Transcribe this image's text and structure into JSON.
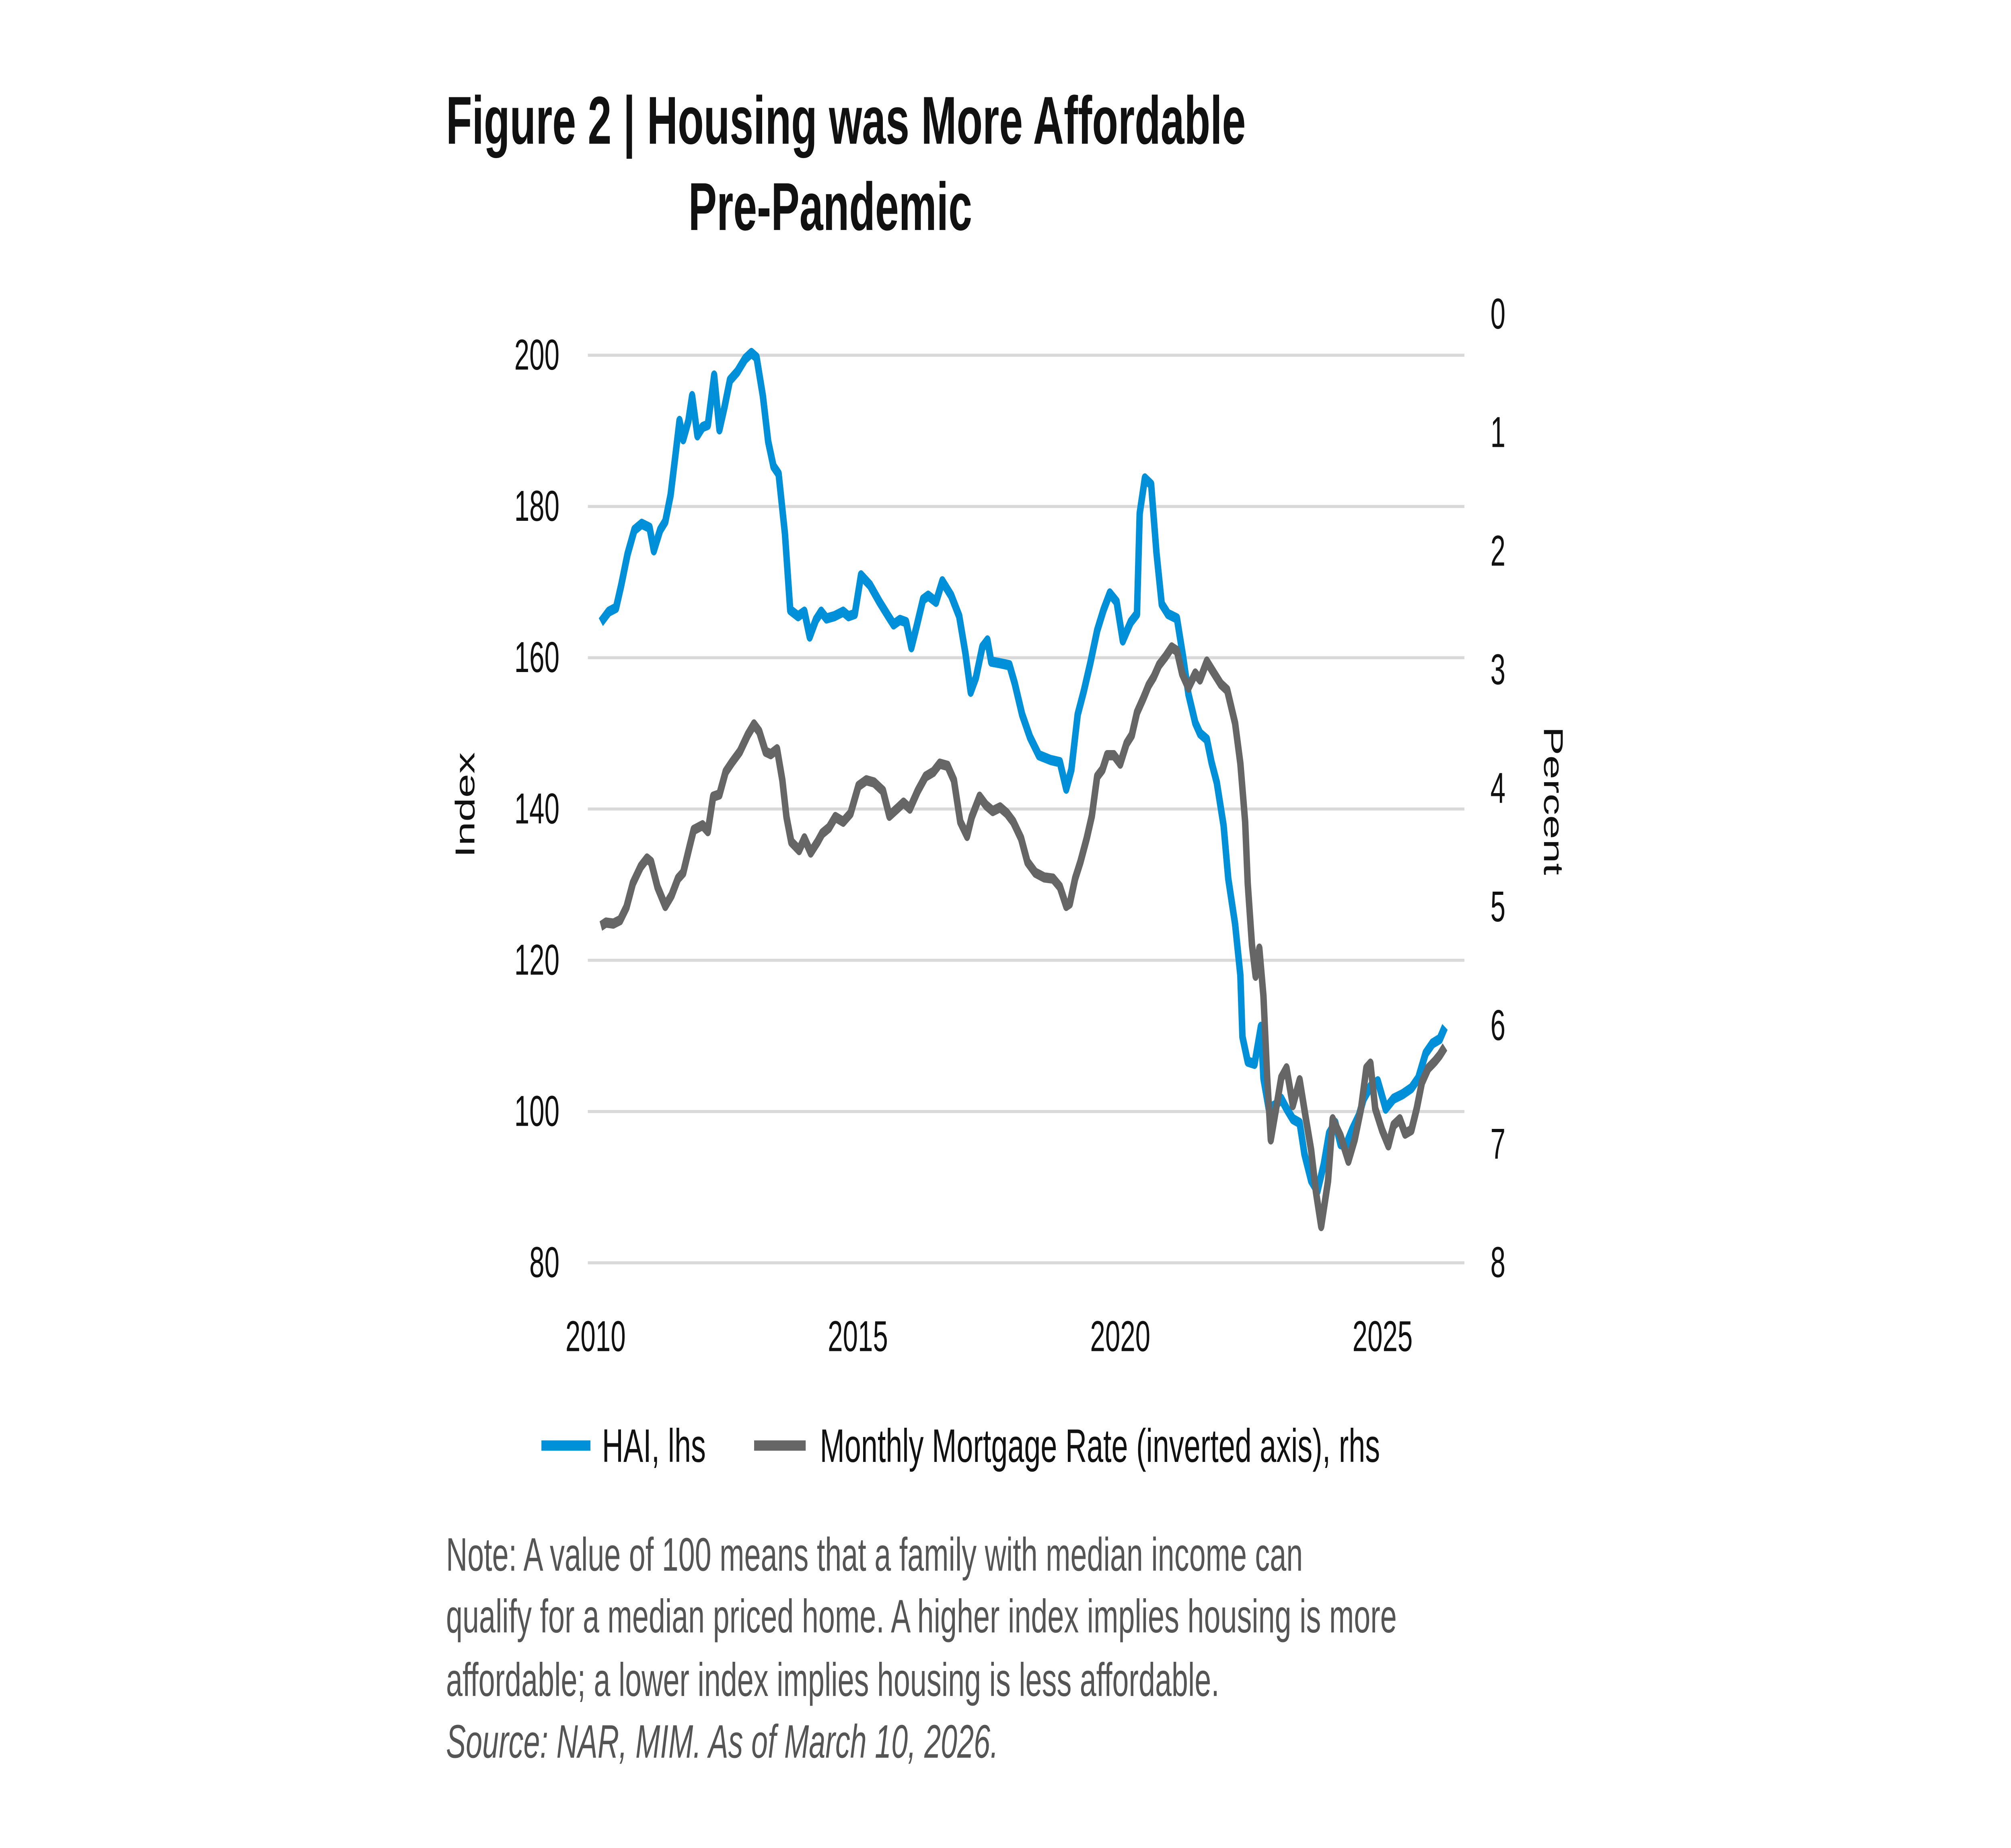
{
  "title": {
    "line1": "Figure 2  |  Housing was More Affordable",
    "line2": "Pre-Pandemic"
  },
  "note": {
    "lines": [
      "Note: A value of 100 means that a family with median income can",
      "qualify for a median priced home. A higher index implies housing is more",
      "affordable; a lower index implies housing is less affordable."
    ],
    "source": "Source: NAR, MIM. As of March 10, 2026."
  },
  "colors": {
    "hai": "#0090DA",
    "rate": "#666666",
    "grid": "#D9D9D9"
  },
  "chart_data": {
    "type": "line",
    "title": "Figure 2 | Housing was More Affordable Pre-Pandemic",
    "xlabel": "",
    "ylabel": "Index",
    "y2label": "Percent",
    "xlim": [
      2010,
      2026.7
    ],
    "ylim": [
      80,
      200
    ],
    "y2lim": [
      0,
      8
    ],
    "y2_inverted": true,
    "grid": true,
    "legend_position": "bottom",
    "x_ticks": [
      "2010",
      "2015",
      "2020",
      "2025"
    ],
    "y_ticks": [
      "200",
      "180",
      "160",
      "140",
      "120",
      "100",
      "80"
    ],
    "y2_ticks": [
      "0",
      "1",
      "2",
      "3",
      "4",
      "5",
      "6",
      "7",
      "8"
    ],
    "series": [
      {
        "name": "HAI, lhs",
        "axis": "left",
        "points": [
          [
            2010.1,
            164.7
          ],
          [
            2010.25,
            166.1
          ],
          [
            2010.39,
            166.6
          ],
          [
            2010.49,
            169.6
          ],
          [
            2010.61,
            173.7
          ],
          [
            2010.74,
            176.9
          ],
          [
            2010.88,
            177.7
          ],
          [
            2011.03,
            177.2
          ],
          [
            2011.11,
            174.2
          ],
          [
            2011.23,
            176.9
          ],
          [
            2011.33,
            178.0
          ],
          [
            2011.43,
            181.5
          ],
          [
            2011.52,
            186.7
          ],
          [
            2011.6,
            191.3
          ],
          [
            2011.67,
            188.9
          ],
          [
            2011.77,
            191.3
          ],
          [
            2011.84,
            194.6
          ],
          [
            2011.94,
            189.4
          ],
          [
            2012.04,
            190.5
          ],
          [
            2012.14,
            190.8
          ],
          [
            2012.26,
            197.3
          ],
          [
            2012.36,
            190.2
          ],
          [
            2012.46,
            193.2
          ],
          [
            2012.56,
            196.7
          ],
          [
            2012.7,
            197.8
          ],
          [
            2012.85,
            199.5
          ],
          [
            2012.97,
            200.3
          ],
          [
            2013.07,
            199.7
          ],
          [
            2013.19,
            194.6
          ],
          [
            2013.29,
            188.6
          ],
          [
            2013.39,
            185.3
          ],
          [
            2013.49,
            184.3
          ],
          [
            2013.61,
            176.4
          ],
          [
            2013.71,
            166.3
          ],
          [
            2013.86,
            165.5
          ],
          [
            2013.98,
            166.1
          ],
          [
            2014.08,
            162.8
          ],
          [
            2014.2,
            165.0
          ],
          [
            2014.3,
            166.1
          ],
          [
            2014.4,
            165.2
          ],
          [
            2014.55,
            165.5
          ],
          [
            2014.72,
            166.1
          ],
          [
            2014.82,
            165.5
          ],
          [
            2014.94,
            165.8
          ],
          [
            2015.06,
            170.9
          ],
          [
            2015.23,
            169.6
          ],
          [
            2015.41,
            167.4
          ],
          [
            2015.58,
            165.5
          ],
          [
            2015.68,
            164.4
          ],
          [
            2015.8,
            165.0
          ],
          [
            2015.92,
            164.7
          ],
          [
            2016.02,
            161.4
          ],
          [
            2016.12,
            164.2
          ],
          [
            2016.24,
            167.7
          ],
          [
            2016.34,
            168.2
          ],
          [
            2016.49,
            167.4
          ],
          [
            2016.61,
            170.1
          ],
          [
            2016.78,
            168.2
          ],
          [
            2016.93,
            165.5
          ],
          [
            2017.05,
            160.6
          ],
          [
            2017.15,
            155.5
          ],
          [
            2017.25,
            157.4
          ],
          [
            2017.37,
            161.4
          ],
          [
            2017.47,
            162.3
          ],
          [
            2017.54,
            159.5
          ],
          [
            2017.69,
            159.3
          ],
          [
            2017.89,
            159.0
          ],
          [
            2017.99,
            156.6
          ],
          [
            2018.13,
            152.5
          ],
          [
            2018.28,
            149.5
          ],
          [
            2018.45,
            147.1
          ],
          [
            2018.67,
            146.5
          ],
          [
            2018.85,
            146.2
          ],
          [
            2018.97,
            142.7
          ],
          [
            2019.07,
            145.2
          ],
          [
            2019.19,
            152.5
          ],
          [
            2019.31,
            155.7
          ],
          [
            2019.43,
            159.3
          ],
          [
            2019.56,
            163.6
          ],
          [
            2019.68,
            166.3
          ],
          [
            2019.8,
            168.5
          ],
          [
            2019.93,
            167.4
          ],
          [
            2020.05,
            162.3
          ],
          [
            2020.2,
            164.7
          ],
          [
            2020.32,
            165.8
          ],
          [
            2020.37,
            179.1
          ],
          [
            2020.47,
            183.7
          ],
          [
            2020.59,
            182.9
          ],
          [
            2020.69,
            173.9
          ],
          [
            2020.79,
            167.1
          ],
          [
            2020.91,
            165.8
          ],
          [
            2021.08,
            165.2
          ],
          [
            2021.2,
            160.1
          ],
          [
            2021.3,
            155.2
          ],
          [
            2021.43,
            151.4
          ],
          [
            2021.52,
            150.0
          ],
          [
            2021.65,
            149.2
          ],
          [
            2021.74,
            146.2
          ],
          [
            2021.84,
            143.5
          ],
          [
            2021.97,
            137.8
          ],
          [
            2022.06,
            130.8
          ],
          [
            2022.19,
            124.8
          ],
          [
            2022.29,
            118.0
          ],
          [
            2022.33,
            109.9
          ],
          [
            2022.43,
            106.6
          ],
          [
            2022.56,
            106.3
          ],
          [
            2022.68,
            111.2
          ],
          [
            2022.73,
            104.4
          ],
          [
            2022.83,
            100.4
          ],
          [
            2022.97,
            100.9
          ],
          [
            2023.07,
            101.7
          ],
          [
            2023.17,
            100.4
          ],
          [
            2023.29,
            99.0
          ],
          [
            2023.42,
            98.5
          ],
          [
            2023.51,
            94.4
          ],
          [
            2023.64,
            90.9
          ],
          [
            2023.76,
            89.5
          ],
          [
            2023.88,
            93.0
          ],
          [
            2023.98,
            97.1
          ],
          [
            2024.1,
            98.5
          ],
          [
            2024.2,
            95.7
          ],
          [
            2024.3,
            95.5
          ],
          [
            2024.42,
            97.6
          ],
          [
            2024.55,
            99.5
          ],
          [
            2024.64,
            101.7
          ],
          [
            2024.77,
            103.3
          ],
          [
            2024.91,
            104.0
          ],
          [
            2025.06,
            100.4
          ],
          [
            2025.21,
            101.7
          ],
          [
            2025.38,
            102.3
          ],
          [
            2025.55,
            103.1
          ],
          [
            2025.68,
            104.4
          ],
          [
            2025.82,
            107.7
          ],
          [
            2025.95,
            109.0
          ],
          [
            2026.09,
            109.6
          ],
          [
            2026.19,
            111.2
          ]
        ]
      },
      {
        "name": "Monthly Mortgage Rate (inverted axis), rhs",
        "axis": "right",
        "points": [
          [
            2010.1,
            5.16
          ],
          [
            2010.2,
            5.13
          ],
          [
            2010.34,
            5.14
          ],
          [
            2010.47,
            5.11
          ],
          [
            2010.59,
            5.0
          ],
          [
            2010.71,
            4.8
          ],
          [
            2010.86,
            4.66
          ],
          [
            2010.98,
            4.59
          ],
          [
            2011.06,
            4.62
          ],
          [
            2011.18,
            4.83
          ],
          [
            2011.33,
            4.99
          ],
          [
            2011.45,
            4.9
          ],
          [
            2011.57,
            4.76
          ],
          [
            2011.67,
            4.71
          ],
          [
            2011.79,
            4.49
          ],
          [
            2011.87,
            4.35
          ],
          [
            2012.04,
            4.31
          ],
          [
            2012.14,
            4.36
          ],
          [
            2012.24,
            4.07
          ],
          [
            2012.36,
            4.05
          ],
          [
            2012.48,
            3.86
          ],
          [
            2012.6,
            3.78
          ],
          [
            2012.75,
            3.69
          ],
          [
            2012.9,
            3.55
          ],
          [
            2013.02,
            3.46
          ],
          [
            2013.12,
            3.52
          ],
          [
            2013.24,
            3.69
          ],
          [
            2013.34,
            3.71
          ],
          [
            2013.46,
            3.67
          ],
          [
            2013.56,
            3.93
          ],
          [
            2013.64,
            4.24
          ],
          [
            2013.73,
            4.45
          ],
          [
            2013.88,
            4.52
          ],
          [
            2013.98,
            4.42
          ],
          [
            2014.1,
            4.54
          ],
          [
            2014.23,
            4.45
          ],
          [
            2014.32,
            4.38
          ],
          [
            2014.45,
            4.33
          ],
          [
            2014.57,
            4.24
          ],
          [
            2014.72,
            4.28
          ],
          [
            2014.86,
            4.21
          ],
          [
            2015.01,
            3.98
          ],
          [
            2015.16,
            3.93
          ],
          [
            2015.31,
            3.95
          ],
          [
            2015.48,
            4.02
          ],
          [
            2015.6,
            4.23
          ],
          [
            2015.75,
            4.17
          ],
          [
            2015.87,
            4.12
          ],
          [
            2015.99,
            4.17
          ],
          [
            2016.14,
            4.02
          ],
          [
            2016.29,
            3.9
          ],
          [
            2016.44,
            3.86
          ],
          [
            2016.56,
            3.79
          ],
          [
            2016.71,
            3.81
          ],
          [
            2016.83,
            3.93
          ],
          [
            2016.95,
            4.28
          ],
          [
            2017.08,
            4.4
          ],
          [
            2017.17,
            4.24
          ],
          [
            2017.32,
            4.07
          ],
          [
            2017.44,
            4.14
          ],
          [
            2017.57,
            4.19
          ],
          [
            2017.71,
            4.16
          ],
          [
            2017.84,
            4.21
          ],
          [
            2017.96,
            4.28
          ],
          [
            2018.11,
            4.42
          ],
          [
            2018.23,
            4.62
          ],
          [
            2018.38,
            4.71
          ],
          [
            2018.55,
            4.75
          ],
          [
            2018.72,
            4.76
          ],
          [
            2018.85,
            4.83
          ],
          [
            2018.97,
            4.99
          ],
          [
            2019.04,
            4.97
          ],
          [
            2019.14,
            4.76
          ],
          [
            2019.24,
            4.62
          ],
          [
            2019.36,
            4.42
          ],
          [
            2019.46,
            4.23
          ],
          [
            2019.56,
            3.9
          ],
          [
            2019.66,
            3.84
          ],
          [
            2019.75,
            3.72
          ],
          [
            2019.88,
            3.72
          ],
          [
            2020.0,
            3.79
          ],
          [
            2020.12,
            3.62
          ],
          [
            2020.22,
            3.55
          ],
          [
            2020.32,
            3.36
          ],
          [
            2020.44,
            3.24
          ],
          [
            2020.54,
            3.13
          ],
          [
            2020.64,
            3.06
          ],
          [
            2020.74,
            2.96
          ],
          [
            2020.86,
            2.89
          ],
          [
            2020.98,
            2.81
          ],
          [
            2021.08,
            2.84
          ],
          [
            2021.18,
            3.03
          ],
          [
            2021.3,
            3.15
          ],
          [
            2021.43,
            3.03
          ],
          [
            2021.52,
            3.08
          ],
          [
            2021.65,
            2.93
          ],
          [
            2021.79,
            3.03
          ],
          [
            2021.92,
            3.12
          ],
          [
            2022.04,
            3.17
          ],
          [
            2022.19,
            3.45
          ],
          [
            2022.29,
            3.79
          ],
          [
            2022.38,
            4.28
          ],
          [
            2022.43,
            4.8
          ],
          [
            2022.51,
            5.32
          ],
          [
            2022.58,
            5.58
          ],
          [
            2022.65,
            5.35
          ],
          [
            2022.73,
            5.75
          ],
          [
            2022.8,
            6.44
          ],
          [
            2022.87,
            6.96
          ],
          [
            2022.97,
            6.7
          ],
          [
            2023.07,
            6.44
          ],
          [
            2023.17,
            6.36
          ],
          [
            2023.29,
            6.67
          ],
          [
            2023.42,
            6.46
          ],
          [
            2023.54,
            6.79
          ],
          [
            2023.64,
            7.05
          ],
          [
            2023.73,
            7.4
          ],
          [
            2023.83,
            7.69
          ],
          [
            2023.96,
            7.31
          ],
          [
            2024.05,
            6.79
          ],
          [
            2024.2,
            6.93
          ],
          [
            2024.35,
            7.14
          ],
          [
            2024.47,
            6.96
          ],
          [
            2024.59,
            6.7
          ],
          [
            2024.69,
            6.36
          ],
          [
            2024.77,
            6.32
          ],
          [
            2024.86,
            6.7
          ],
          [
            2024.99,
            6.88
          ],
          [
            2025.11,
            7.01
          ],
          [
            2025.21,
            6.84
          ],
          [
            2025.33,
            6.79
          ],
          [
            2025.43,
            6.91
          ],
          [
            2025.55,
            6.88
          ],
          [
            2025.65,
            6.7
          ],
          [
            2025.75,
            6.48
          ],
          [
            2025.87,
            6.36
          ],
          [
            2026.0,
            6.3
          ],
          [
            2026.09,
            6.25
          ],
          [
            2026.19,
            6.18
          ]
        ]
      }
    ]
  }
}
